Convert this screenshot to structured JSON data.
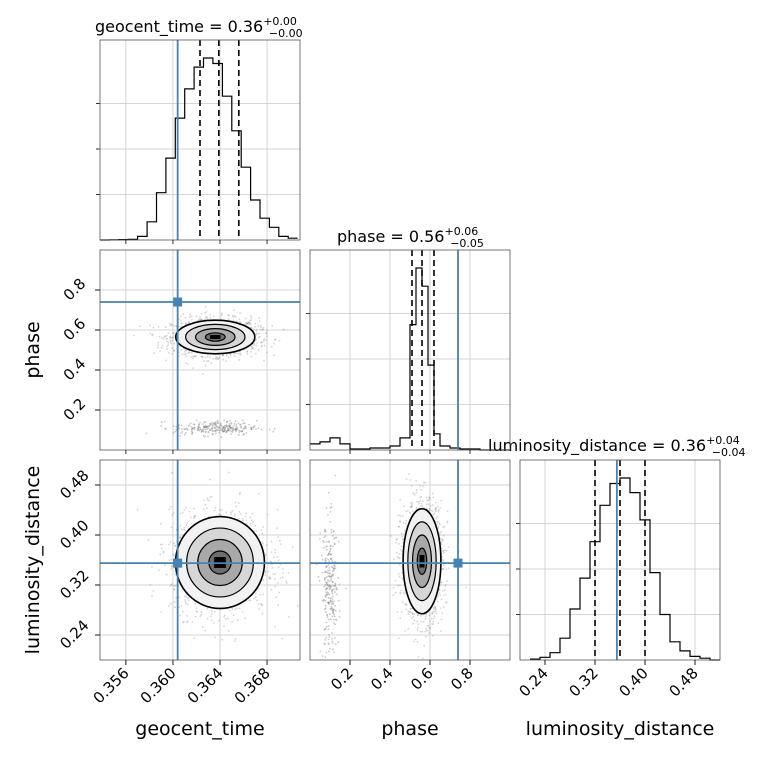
{
  "chart_data": {
    "type": "corner",
    "parameters": [
      "geocent_time",
      "phase",
      "luminosity_distance"
    ],
    "axis_labels": [
      "geocent_time",
      "phase",
      "luminosity_distance"
    ],
    "ranges": [
      [
        0.3538,
        0.3708
      ],
      [
        0.0,
        1.0
      ],
      [
        0.2,
        0.52
      ]
    ],
    "ticks": {
      "geocent_time": [
        "0.356",
        "0.360",
        "0.364",
        "0.368"
      ],
      "phase": [
        "0.2",
        "0.4",
        "0.6",
        "0.8"
      ],
      "luminosity_distance": [
        "0.24",
        "0.32",
        "0.40",
        "0.48"
      ]
    },
    "truths": {
      "geocent_time": 0.3604,
      "phase": 0.74,
      "luminosity_distance": 0.355
    },
    "truth_color": "#4682b4",
    "titles": [
      {
        "param": "geocent_time",
        "main": "geocent_time = 0.36",
        "sup": "+0.00",
        "sub": "−0.00"
      },
      {
        "param": "phase",
        "main": "phase = 0.56",
        "sup": "+0.06",
        "sub": "−0.05"
      },
      {
        "param": "luminosity_distance",
        "main": "luminosity_distance = 0.36",
        "sup": "+0.04",
        "sub": "−0.04"
      }
    ],
    "quantiles": {
      "geocent_time": [
        0.3623,
        0.3639,
        0.3656
      ],
      "phase": [
        0.51,
        0.56,
        0.62
      ],
      "luminosity_distance": [
        0.32,
        0.36,
        0.4
      ]
    },
    "histograms": {
      "geocent_time": {
        "edges": [
          0.3538,
          0.3546,
          0.3554,
          0.3562,
          0.357,
          0.3578,
          0.3586,
          0.3594,
          0.3602,
          0.361,
          0.3618,
          0.3626,
          0.3634,
          0.3642,
          0.365,
          0.3658,
          0.3666,
          0.3674,
          0.3682,
          0.369,
          0.3698,
          0.3706
        ],
        "counts": [
          0,
          0.001,
          0.002,
          0.004,
          0.02,
          0.1,
          0.26,
          0.45,
          0.67,
          0.83,
          0.95,
          1.0,
          0.97,
          0.79,
          0.6,
          0.4,
          0.22,
          0.12,
          0.07,
          0.02,
          0.01
        ]
      },
      "phase": {
        "edges": [
          0.0,
          0.05,
          0.1,
          0.15,
          0.2,
          0.25,
          0.3,
          0.35,
          0.4,
          0.45,
          0.5,
          0.53,
          0.56,
          0.59,
          0.62,
          0.65,
          0.7,
          0.75,
          0.8,
          0.85,
          0.9,
          0.95,
          1.0
        ],
        "counts": [
          0.03,
          0.04,
          0.06,
          0.03,
          0.005,
          0.005,
          0.01,
          0.01,
          0.02,
          0.06,
          0.62,
          0.9,
          0.81,
          0.42,
          0.08,
          0.02,
          0.01,
          0.005,
          0.005,
          0,
          0,
          0
        ]
      },
      "luminosity_distance": {
        "edges": [
          0.216,
          0.232,
          0.248,
          0.264,
          0.28,
          0.296,
          0.312,
          0.328,
          0.344,
          0.36,
          0.376,
          0.392,
          0.408,
          0.424,
          0.44,
          0.456,
          0.472,
          0.488,
          0.504,
          0.52
        ],
        "counts": [
          0.005,
          0.015,
          0.04,
          0.12,
          0.28,
          0.45,
          0.65,
          0.85,
          0.97,
          1.0,
          0.92,
          0.77,
          0.48,
          0.25,
          0.1,
          0.05,
          0.02,
          0.01,
          0
        ]
      }
    },
    "contours": {
      "geocent_time|phase": {
        "center": [
          0.3636,
          0.565
        ],
        "sigma": [
          0.0016,
          0.04
        ],
        "secondary_mode": [
          0.3636,
          0.11
        ]
      },
      "geocent_time|luminosity_distance": {
        "center": [
          0.364,
          0.356
        ],
        "sigma": [
          0.0018,
          0.035
        ]
      },
      "phase|luminosity_distance": {
        "center": [
          0.56,
          0.358
        ],
        "sigma": [
          0.045,
          0.04
        ],
        "secondary_mode": [
          0.1,
          0.31
        ]
      }
    },
    "levels": [
      0.5,
      1.0,
      1.5,
      2.0
    ]
  }
}
